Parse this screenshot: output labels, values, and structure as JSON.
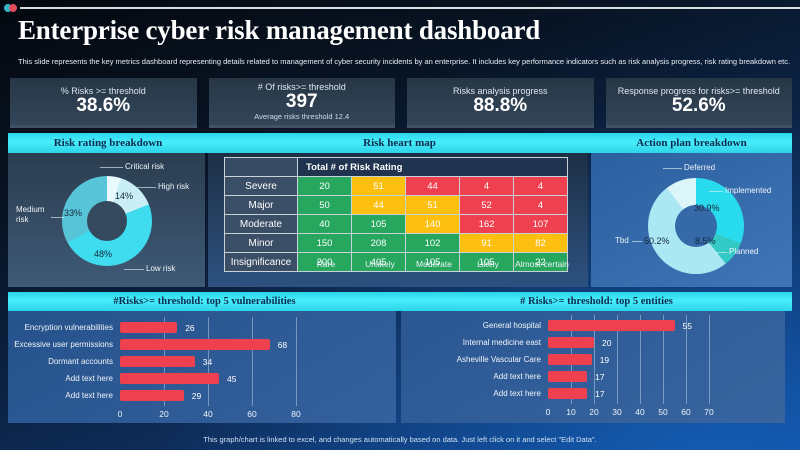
{
  "header": {
    "title": "Enterprise cyber risk management dashboard",
    "subtitle": "This slide represents the key metrics dashboard representing details related to management  of cyber security incidents by an enterprise. It includes key performance indicators such as risk analysis progress, risk rating breakdown etc."
  },
  "kpis": [
    {
      "label": "% Risks >= threshold",
      "value": "38.6%",
      "note": ""
    },
    {
      "label": "# Of risks>= threshold",
      "value": "397",
      "note": "Average risks threshold 12.4"
    },
    {
      "label": "Risks analysis progress",
      "value": "88.8%",
      "note": ""
    },
    {
      "label": "Response progress for risks>= threshold",
      "value": "52.6%",
      "note": ""
    }
  ],
  "footer": {
    "text": "This graph/chart is linked to excel, and changes automatically based on data. Just left click on it and select \"Edit Data\"."
  },
  "chart_data": [
    {
      "type": "pie",
      "title": "Risk rating breakdown",
      "labels": [
        "Critical risk",
        "High risk",
        "Low risk",
        "Medium risk"
      ],
      "values": [
        5,
        14,
        48,
        33
      ],
      "display_values": [
        "",
        "14%",
        "48%",
        "33%"
      ],
      "colors": [
        "#e9fafc",
        "#c9eef6",
        "#3edcee",
        "#58c4d7"
      ],
      "legend_position": "callouts"
    },
    {
      "type": "heatmap",
      "title": "Risk heart map",
      "header": "Total # of Risk Rating",
      "row_labels": [
        "Severe",
        "Major",
        "Moderate",
        "Minor",
        "Insignificance"
      ],
      "col_labels": [
        "Rare",
        "Unlikely",
        "Moderate",
        "Likely",
        "Almost certain"
      ],
      "values": [
        [
          20,
          51,
          44,
          4,
          4
        ],
        [
          50,
          44,
          51,
          52,
          4
        ],
        [
          40,
          105,
          140,
          162,
          107
        ],
        [
          150,
          208,
          102,
          91,
          82
        ],
        [
          200,
          405,
          105,
          105,
          22
        ]
      ],
      "cell_colors": [
        [
          "g",
          "y",
          "r",
          "r",
          "r"
        ],
        [
          "g",
          "y",
          "y",
          "r",
          "r"
        ],
        [
          "g",
          "g",
          "y",
          "r",
          "r"
        ],
        [
          "g",
          "g",
          "g",
          "y",
          "y"
        ],
        [
          "g",
          "g",
          "g",
          "g",
          "g"
        ]
      ],
      "palette": {
        "g": "#27a75e",
        "y": "#fdc011",
        "r": "#ee404e"
      }
    },
    {
      "type": "pie",
      "title": "Action plan breakdown",
      "labels": [
        "Implemented",
        "Planned",
        "Tbd",
        "Deferred"
      ],
      "values": [
        30.9,
        8.5,
        50.2,
        10.4
      ],
      "display_values": [
        "30.9%",
        "8.5%",
        "50.2%",
        ""
      ],
      "colors": [
        "#29dced",
        "#33c9c4",
        "#abe8f3",
        "#dbf5f9"
      ],
      "legend_position": "callouts"
    },
    {
      "type": "bar",
      "orientation": "horizontal",
      "title": "#Risks>= threshold: top 5 vulnerabilities",
      "categories": [
        "Encryption vulnerabilities",
        "Excessive user permissions",
        "Dormant accounts",
        "Add text here",
        "Add text here"
      ],
      "values": [
        26,
        68,
        34,
        45,
        29
      ],
      "xticks": [
        0,
        20,
        40,
        60,
        80
      ],
      "bar_color": "#ef4050"
    },
    {
      "type": "bar",
      "orientation": "horizontal",
      "title": "# Risks>= threshold: top 5 entities",
      "categories": [
        "General hospital",
        "Internal medicine east",
        "Asheville Vascular Care",
        "Add text here",
        "Add text here"
      ],
      "values": [
        55,
        20,
        19,
        17,
        17
      ],
      "xticks": [
        0,
        10,
        20,
        30,
        40,
        50,
        60,
        70
      ],
      "bar_color": "#ef4050"
    }
  ]
}
